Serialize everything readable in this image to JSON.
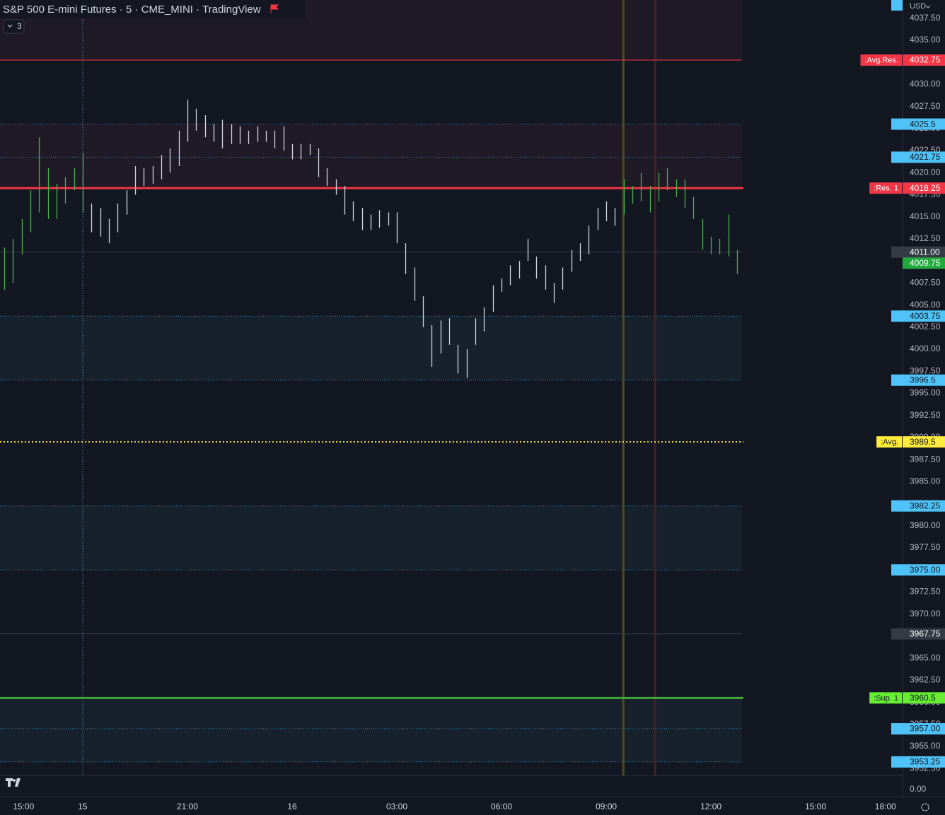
{
  "header": {
    "title": "S&P 500 E-mini Futures · 5 · CME_MINI · TradingView",
    "indicator_count": "3",
    "currency": "USD"
  },
  "chart_data": {
    "type": "ohlc-range",
    "xlim": [
      15.63,
      41.49
    ],
    "ylim": [
      3951.72,
      4039.56
    ],
    "xticks": [
      {
        "value": 16,
        "label": "15:00"
      },
      {
        "value": 18,
        "label": "15"
      },
      {
        "value": 21,
        "label": "21:00"
      },
      {
        "value": 24,
        "label": "16"
      },
      {
        "value": 27,
        "label": "03:00"
      },
      {
        "value": 30,
        "label": "06:00"
      },
      {
        "value": 33,
        "label": "09:00"
      },
      {
        "value": 36,
        "label": "12:00"
      },
      {
        "value": 39,
        "label": "15:00"
      },
      {
        "value": 41,
        "label": "18:00"
      }
    ],
    "yticks": [
      {
        "value": 4037.5,
        "label": "4037.50"
      },
      {
        "value": 4035,
        "label": "4035.00"
      },
      {
        "value": 4032.5,
        "label": "4032.50"
      },
      {
        "value": 4030,
        "label": "4030.00"
      },
      {
        "value": 4027.5,
        "label": "4027.50"
      },
      {
        "value": 4025,
        "label": "4025.00"
      },
      {
        "value": 4022.5,
        "label": "4022.50"
      },
      {
        "value": 4020,
        "label": "4020.00"
      },
      {
        "value": 4017.5,
        "label": "4017.50"
      },
      {
        "value": 4015,
        "label": "4015.00"
      },
      {
        "value": 4012.5,
        "label": "4012.50"
      },
      {
        "value": 4010,
        "label": "4010.00"
      },
      {
        "value": 4007.5,
        "label": "4007.50"
      },
      {
        "value": 4005,
        "label": "4005.00"
      },
      {
        "value": 4002.5,
        "label": "4002.50"
      },
      {
        "value": 4000,
        "label": "4000.00"
      },
      {
        "value": 3997.5,
        "label": "3997.50"
      },
      {
        "value": 3995,
        "label": "3995.00"
      },
      {
        "value": 3992.5,
        "label": "3992.50"
      },
      {
        "value": 3990,
        "label": "3990.00"
      },
      {
        "value": 3987.5,
        "label": "3987.50"
      },
      {
        "value": 3985,
        "label": "3985.00"
      },
      {
        "value": 3982.5,
        "label": "3982.50"
      },
      {
        "value": 3980,
        "label": "3980.00"
      },
      {
        "value": 3977.5,
        "label": "3977.50"
      },
      {
        "value": 3975,
        "label": "3975.00"
      },
      {
        "value": 3972.5,
        "label": "3972.50"
      },
      {
        "value": 3970,
        "label": "3970.00"
      },
      {
        "value": 3967.5,
        "label": "3967.50"
      },
      {
        "value": 3965,
        "label": "3965.00"
      },
      {
        "value": 3962.5,
        "label": "3962.50"
      },
      {
        "value": 3960,
        "label": "3960.00"
      },
      {
        "value": 3957.5,
        "label": "3957.50"
      },
      {
        "value": 3955,
        "label": "3955.00"
      },
      {
        "value": 3952.5,
        "label": "3952.50"
      }
    ],
    "lower_pane_label": "0.00",
    "x": [
      15.75,
      16,
      16.25,
      16.5,
      16.75,
      17,
      17.25,
      17.5,
      17.75,
      18,
      18.25,
      18.5,
      18.75,
      19,
      19.25,
      19.5,
      19.75,
      20,
      20.25,
      20.5,
      20.75,
      21,
      21.25,
      21.5,
      21.75,
      22,
      22.25,
      22.5,
      22.75,
      23,
      23.25,
      23.5,
      23.75,
      24,
      24.25,
      24.5,
      24.75,
      25,
      25.25,
      25.5,
      25.75,
      26,
      26.25,
      26.5,
      26.75,
      27,
      27.25,
      27.5,
      27.75,
      28,
      28.25,
      28.5,
      28.75,
      29,
      29.25,
      29.5,
      29.75,
      30,
      30.25,
      30.5,
      30.75,
      31,
      31.25,
      31.5,
      31.75,
      32,
      32.25,
      32.5,
      32.75,
      33,
      33.25,
      33.5,
      33.75,
      34,
      34.25,
      34.5,
      34.75,
      35,
      35.25,
      35.5,
      35.75,
      36,
      36.25,
      36.5,
      36.75
    ],
    "highs": [
      4011.5,
      4012.5,
      4014.75,
      4018,
      4024,
      4020.5,
      4018.75,
      4019.5,
      4020.5,
      4022.25,
      4016.5,
      4016,
      4014.75,
      4016.5,
      4018,
      4020.75,
      4020.5,
      4020.75,
      4022,
      4022.75,
      4024.75,
      4028.25,
      4027.25,
      4026.5,
      4025.5,
      4026,
      4025.5,
      4025.25,
      4024.75,
      4025.25,
      4024.75,
      4024.75,
      4025.25,
      4023.25,
      4023.25,
      4023.25,
      4022.75,
      4020.5,
      4019.25,
      4018.5,
      4016.75,
      4016,
      4015.25,
      4015.75,
      4015.5,
      4015.5,
      4012,
      4009.25,
      4006,
      4002.75,
      4003.25,
      4003.5,
      4000.5,
      4000,
      4003.5,
      4004.75,
      4007.25,
      4008,
      4009.5,
      4010,
      4012.5,
      4010.5,
      4009.5,
      4007.5,
      4009.25,
      4011.25,
      4012,
      4014,
      4016,
      4016.75,
      4016,
      4019.25,
      4018.5,
      4020,
      4018.5,
      4020,
      4020.5,
      4019.25,
      4019.25,
      4017.25,
      4014.75,
      4012.75,
      4012.5,
      4015.25,
      4011.25
    ],
    "lows": [
      4006.75,
      4007.5,
      4010.75,
      4013.25,
      4015.5,
      4014.75,
      4014.75,
      4016.5,
      4018,
      4015.5,
      4013.25,
      4012.75,
      4012,
      4013.25,
      4015.25,
      4017.5,
      4018.5,
      4018.75,
      4019.25,
      4020,
      4020.75,
      4023.5,
      4024.75,
      4024,
      4023.5,
      4022.75,
      4023.25,
      4023.25,
      4023.25,
      4023.5,
      4023.5,
      4022.75,
      4022.5,
      4021.5,
      4021.5,
      4022,
      4019.5,
      4018.5,
      4017.5,
      4015.25,
      4014.5,
      4013.5,
      4013.5,
      4013.75,
      4014,
      4012,
      4008.5,
      4005.5,
      4002.5,
      3998,
      3999.5,
      4000.5,
      3997.25,
      3996.75,
      4000.5,
      4002,
      4004.25,
      4006.5,
      4007.25,
      4008,
      4010,
      4008,
      4006.75,
      4005.25,
      4006.75,
      4008.75,
      4010,
      4010.75,
      4013.5,
      4014.5,
      4014,
      4015.25,
      4016.5,
      4016.75,
      4015.5,
      4016.75,
      4018,
      4017.25,
      4016,
      4014.75,
      4011.25,
      4010.75,
      4010.75,
      4010.5,
      4008.5
    ],
    "colors": [
      "#4caf50",
      "#4caf50",
      "#4caf50",
      "#4caf50",
      "#4caf50",
      "#4caf50",
      "#4caf50",
      "#4caf50",
      "#4caf50",
      "#4caf50",
      "#d1d4dc",
      "#d1d4dc",
      "#d1d4dc",
      "#d1d4dc",
      "#d1d4dc",
      "#d1d4dc",
      "#d1d4dc",
      "#d1d4dc",
      "#d1d4dc",
      "#d1d4dc",
      "#d1d4dc",
      "#d1d4dc",
      "#d1d4dc",
      "#d1d4dc",
      "#d1d4dc",
      "#d1d4dc",
      "#d1d4dc",
      "#d1d4dc",
      "#d1d4dc",
      "#d1d4dc",
      "#d1d4dc",
      "#d1d4dc",
      "#d1d4dc",
      "#d1d4dc",
      "#d1d4dc",
      "#d1d4dc",
      "#d1d4dc",
      "#d1d4dc",
      "#d1d4dc",
      "#d1d4dc",
      "#d1d4dc",
      "#d1d4dc",
      "#d1d4dc",
      "#d1d4dc",
      "#d1d4dc",
      "#d1d4dc",
      "#d1d4dc",
      "#d1d4dc",
      "#d1d4dc",
      "#d1d4dc",
      "#d1d4dc",
      "#d1d4dc",
      "#d1d4dc",
      "#d1d4dc",
      "#d1d4dc",
      "#d1d4dc",
      "#d1d4dc",
      "#d1d4dc",
      "#d1d4dc",
      "#d1d4dc",
      "#d1d4dc",
      "#d1d4dc",
      "#d1d4dc",
      "#d1d4dc",
      "#d1d4dc",
      "#d1d4dc",
      "#d1d4dc",
      "#d1d4dc",
      "#d1d4dc",
      "#d1d4dc",
      "#d1d4dc",
      "#4caf50",
      "#4caf50",
      "#4caf50",
      "#4caf50",
      "#4caf50",
      "#4caf50",
      "#4caf50",
      "#4caf50",
      "#4caf50",
      "#4caf50",
      "#4caf50",
      "#4caf50",
      "#4caf50",
      "#4caf50"
    ],
    "zones": [
      {
        "from": 4032.75,
        "to": 4039.56,
        "color": "#201a27"
      },
      {
        "from": 4018.25,
        "to": 4025.5,
        "color": "#201a27"
      },
      {
        "from": 3996.5,
        "to": 4003.75,
        "color": "#16212b"
      },
      {
        "from": 3975,
        "to": 3982.25,
        "color": "#16212b"
      },
      {
        "from": 3953.25,
        "to": 3960.5,
        "color": "#16212b"
      }
    ],
    "vlines": [
      {
        "x": 18,
        "color": "#5a8fb0",
        "style": "dotted"
      },
      {
        "x": 33.49,
        "color": "#4e4a25",
        "style": "solid"
      },
      {
        "x": 34.4,
        "color": "#3f2228",
        "style": "solid"
      }
    ],
    "levels": [
      {
        "price": 4032.75,
        "tag": ":Avg.Res.",
        "color": "#f23645",
        "text": "#ffffff",
        "style": "solid",
        "width": 1
      },
      {
        "price": 4025.5,
        "color": "#4fc3f7",
        "text": "#131722",
        "style": "dotted",
        "width": 1,
        "marker": true
      },
      {
        "price": 4021.75,
        "color": "#4fc3f7",
        "text": "#131722",
        "style": "dotted",
        "width": 1,
        "marker": true
      },
      {
        "price": 4018.25,
        "tag": ":Res. 1",
        "color": "#f23645",
        "text": "#ffffff",
        "style": "solid",
        "width": 3
      },
      {
        "price": {
          "value": 4011,
          "label": "4011.00"
        },
        "color": "#363a45",
        "text": "#ffffff",
        "style": "solid",
        "width": 1,
        "marker": true
      },
      {
        "price": 4009.75,
        "color": "#22ab3c",
        "text": "#ffffff",
        "style": "none",
        "width": 0
      },
      {
        "price": 4003.75,
        "color": "#4fc3f7",
        "text": "#131722",
        "style": "dotted",
        "width": 1,
        "marker": true
      },
      {
        "price": 3996.5,
        "color": "#4fc3f7",
        "text": "#131722",
        "style": "dotted",
        "width": 1,
        "marker": true
      },
      {
        "price": 3989.5,
        "tag": ":Avg.",
        "color": "#ffeb3b",
        "text": "#131722",
        "style": "dotted",
        "width": 2
      },
      {
        "price": 3982.25,
        "color": "#4fc3f7",
        "text": "#131722",
        "style": "dotted",
        "width": 1,
        "marker": true
      },
      {
        "price": {
          "value": 3975,
          "label": "3975.00"
        },
        "color": "#4fc3f7",
        "text": "#131722",
        "style": "dotted",
        "width": 1,
        "marker": true
      },
      {
        "price": 3967.75,
        "color": "#363a45",
        "text": "#ffffff",
        "style": "solid",
        "width": 1,
        "marker": true
      },
      {
        "price": 3960.5,
        "tag": ":Sup. 1",
        "color": "#66ee33",
        "text": "#131722",
        "style": "solid",
        "width": 3,
        "line_color": "#43a83a"
      },
      {
        "price": {
          "value": 3957,
          "label": "3957.00"
        },
        "color": "#4fc3f7",
        "text": "#131722",
        "style": "dotted",
        "width": 1,
        "marker": true
      },
      {
        "price": 3953.25,
        "color": "#4fc3f7",
        "text": "#131722",
        "style": "dotted",
        "width": 1,
        "marker": true
      }
    ]
  }
}
